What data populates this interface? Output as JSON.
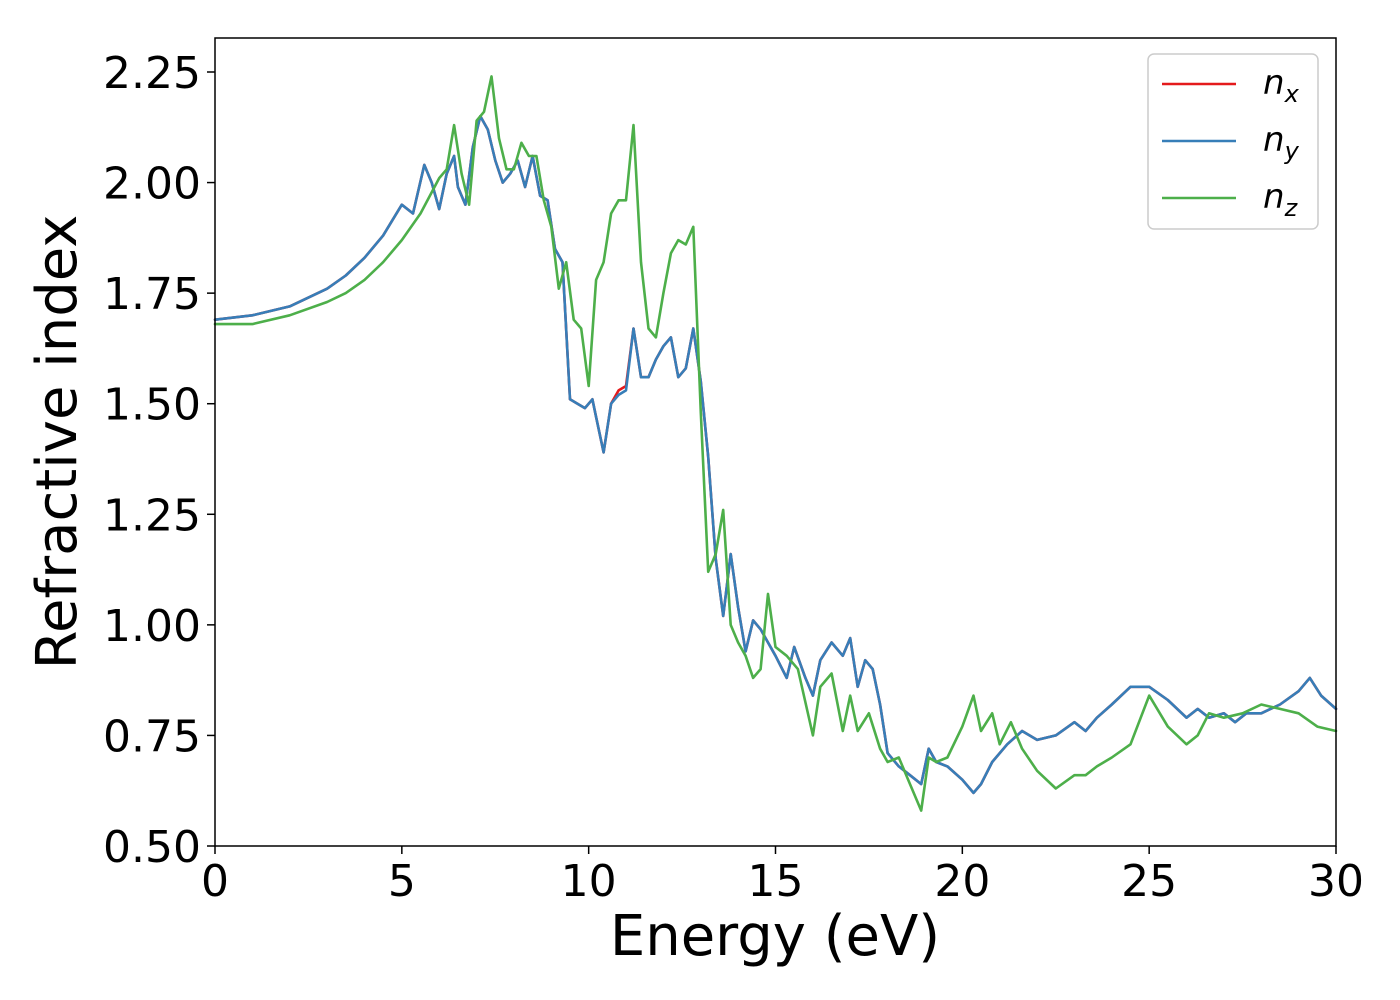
{
  "chart_data": {
    "type": "line",
    "title": "",
    "xlabel": "Energy (eV)",
    "ylabel": "Refractive index",
    "xlim": [
      0,
      30
    ],
    "ylim": [
      0.5,
      2.32
    ],
    "xticks": [
      0,
      5,
      10,
      15,
      20,
      25,
      30
    ],
    "yticks": [
      0.5,
      0.75,
      1.0,
      1.25,
      1.5,
      1.75,
      2.0,
      2.25
    ],
    "xtick_labels": [
      "0",
      "5",
      "10",
      "15",
      "20",
      "25",
      "30"
    ],
    "ytick_labels": [
      "0.50",
      "0.75",
      "1.00",
      "1.25",
      "1.50",
      "1.75",
      "2.00",
      "2.25"
    ],
    "grid": false,
    "legend_position": "top-right",
    "series": [
      {
        "name": "n",
        "subscript": "x",
        "color": "#e41a1c",
        "x": [
          0,
          1,
          2,
          3,
          3.5,
          4,
          4.5,
          5,
          5.3,
          5.6,
          5.8,
          6,
          6.2,
          6.4,
          6.5,
          6.7,
          6.9,
          7.1,
          7.3,
          7.5,
          7.7,
          7.9,
          8.1,
          8.3,
          8.5,
          8.7,
          8.9,
          9.1,
          9.3,
          9.5,
          9.7,
          9.9,
          10.1,
          10.2,
          10.4,
          10.6,
          10.8,
          11,
          11.2,
          11.4,
          11.6,
          11.8,
          12,
          12.2,
          12.4,
          12.6,
          12.8,
          13,
          13.2,
          13.4,
          13.6,
          13.8,
          14,
          14.2,
          14.4,
          14.6,
          14.8,
          15,
          15.3,
          15.5,
          15.8,
          16,
          16.2,
          16.5,
          16.8,
          17,
          17.2,
          17.4,
          17.6,
          17.8,
          18,
          18.3,
          18.6,
          18.9,
          19.1,
          19.3,
          19.6,
          20,
          20.3,
          20.5,
          20.8,
          21.2,
          21.6,
          22,
          22.5,
          23,
          23.3,
          23.6,
          24,
          24.5,
          25,
          25.5,
          26,
          26.3,
          26.6,
          27,
          27.3,
          27.6,
          28,
          28.5,
          29,
          29.3,
          29.6,
          30
        ],
        "values": [
          1.69,
          1.7,
          1.72,
          1.76,
          1.79,
          1.83,
          1.88,
          1.95,
          1.93,
          2.04,
          2.0,
          1.94,
          2.02,
          2.06,
          1.99,
          1.95,
          2.08,
          2.15,
          2.12,
          2.05,
          2.0,
          2.02,
          2.05,
          1.99,
          2.06,
          1.97,
          1.96,
          1.85,
          1.82,
          1.51,
          1.5,
          1.49,
          1.51,
          1.47,
          1.39,
          1.5,
          1.53,
          1.54,
          1.67,
          1.56,
          1.56,
          1.6,
          1.63,
          1.65,
          1.56,
          1.58,
          1.67,
          1.55,
          1.38,
          1.15,
          1.02,
          1.16,
          1.04,
          0.94,
          1.01,
          0.99,
          0.96,
          0.93,
          0.88,
          0.95,
          0.88,
          0.84,
          0.92,
          0.96,
          0.93,
          0.97,
          0.86,
          0.92,
          0.9,
          0.82,
          0.71,
          0.68,
          0.66,
          0.64,
          0.72,
          0.69,
          0.68,
          0.65,
          0.62,
          0.64,
          0.69,
          0.73,
          0.76,
          0.74,
          0.75,
          0.78,
          0.76,
          0.79,
          0.82,
          0.86,
          0.86,
          0.83,
          0.79,
          0.81,
          0.79,
          0.8,
          0.78,
          0.8,
          0.8,
          0.82,
          0.85,
          0.88,
          0.84,
          0.81
        ]
      },
      {
        "name": "n",
        "subscript": "y",
        "color": "#377eb8",
        "x": [
          0,
          1,
          2,
          3,
          3.5,
          4,
          4.5,
          5,
          5.3,
          5.6,
          5.8,
          6,
          6.2,
          6.4,
          6.5,
          6.7,
          6.9,
          7.1,
          7.3,
          7.5,
          7.7,
          7.9,
          8.1,
          8.3,
          8.5,
          8.7,
          8.9,
          9.1,
          9.3,
          9.5,
          9.7,
          9.9,
          10.1,
          10.2,
          10.4,
          10.6,
          10.8,
          11,
          11.2,
          11.4,
          11.6,
          11.8,
          12,
          12.2,
          12.4,
          12.6,
          12.8,
          13,
          13.2,
          13.4,
          13.6,
          13.8,
          14,
          14.2,
          14.4,
          14.6,
          14.8,
          15,
          15.3,
          15.5,
          15.8,
          16,
          16.2,
          16.5,
          16.8,
          17,
          17.2,
          17.4,
          17.6,
          17.8,
          18,
          18.3,
          18.6,
          18.9,
          19.1,
          19.3,
          19.6,
          20,
          20.3,
          20.5,
          20.8,
          21.2,
          21.6,
          22,
          22.5,
          23,
          23.3,
          23.6,
          24,
          24.5,
          25,
          25.5,
          26,
          26.3,
          26.6,
          27,
          27.3,
          27.6,
          28,
          28.5,
          29,
          29.3,
          29.6,
          30
        ],
        "values": [
          1.69,
          1.7,
          1.72,
          1.76,
          1.79,
          1.83,
          1.88,
          1.95,
          1.93,
          2.04,
          2.0,
          1.94,
          2.02,
          2.06,
          1.99,
          1.95,
          2.08,
          2.15,
          2.12,
          2.05,
          2.0,
          2.02,
          2.05,
          1.99,
          2.06,
          1.97,
          1.96,
          1.85,
          1.82,
          1.51,
          1.5,
          1.49,
          1.51,
          1.47,
          1.39,
          1.5,
          1.52,
          1.53,
          1.67,
          1.56,
          1.56,
          1.6,
          1.63,
          1.65,
          1.56,
          1.58,
          1.67,
          1.55,
          1.38,
          1.15,
          1.02,
          1.16,
          1.04,
          0.94,
          1.01,
          0.99,
          0.96,
          0.93,
          0.88,
          0.95,
          0.88,
          0.84,
          0.92,
          0.96,
          0.93,
          0.97,
          0.86,
          0.92,
          0.9,
          0.82,
          0.71,
          0.68,
          0.66,
          0.64,
          0.72,
          0.69,
          0.68,
          0.65,
          0.62,
          0.64,
          0.69,
          0.73,
          0.76,
          0.74,
          0.75,
          0.78,
          0.76,
          0.79,
          0.82,
          0.86,
          0.86,
          0.83,
          0.79,
          0.81,
          0.79,
          0.8,
          0.78,
          0.8,
          0.8,
          0.82,
          0.85,
          0.88,
          0.84,
          0.81
        ]
      },
      {
        "name": "n",
        "subscript": "z",
        "color": "#4daf4a",
        "x": [
          0,
          1,
          2,
          3,
          3.5,
          4,
          4.5,
          5,
          5.5,
          6,
          6.2,
          6.4,
          6.6,
          6.8,
          7,
          7.2,
          7.4,
          7.6,
          7.8,
          8,
          8.2,
          8.4,
          8.6,
          8.8,
          9,
          9.2,
          9.4,
          9.6,
          9.8,
          10,
          10.2,
          10.4,
          10.6,
          10.8,
          11,
          11.2,
          11.4,
          11.6,
          11.8,
          12,
          12.2,
          12.4,
          12.6,
          12.8,
          13,
          13.2,
          13.4,
          13.6,
          13.8,
          14,
          14.2,
          14.4,
          14.6,
          14.8,
          15,
          15.3,
          15.6,
          16,
          16.2,
          16.5,
          16.8,
          17,
          17.2,
          17.5,
          17.8,
          18,
          18.3,
          18.6,
          18.9,
          19.1,
          19.3,
          19.6,
          20,
          20.3,
          20.5,
          20.8,
          21,
          21.3,
          21.6,
          22,
          22.5,
          23,
          23.3,
          23.6,
          24,
          24.5,
          25,
          25.5,
          26,
          26.3,
          26.6,
          27,
          27.5,
          28,
          28.5,
          29,
          29.5,
          30
        ],
        "values": [
          1.68,
          1.68,
          1.7,
          1.73,
          1.75,
          1.78,
          1.82,
          1.87,
          1.93,
          2.01,
          2.03,
          2.13,
          2.02,
          1.95,
          2.14,
          2.16,
          2.24,
          2.1,
          2.03,
          2.03,
          2.09,
          2.06,
          2.06,
          1.96,
          1.9,
          1.76,
          1.82,
          1.69,
          1.67,
          1.54,
          1.78,
          1.82,
          1.93,
          1.96,
          1.96,
          2.13,
          1.82,
          1.67,
          1.65,
          1.75,
          1.84,
          1.87,
          1.86,
          1.9,
          1.48,
          1.12,
          1.16,
          1.26,
          1.0,
          0.96,
          0.93,
          0.88,
          0.9,
          1.07,
          0.95,
          0.93,
          0.9,
          0.75,
          0.86,
          0.89,
          0.76,
          0.84,
          0.76,
          0.8,
          0.72,
          0.69,
          0.7,
          0.64,
          0.58,
          0.7,
          0.69,
          0.7,
          0.77,
          0.84,
          0.76,
          0.8,
          0.73,
          0.78,
          0.72,
          0.67,
          0.63,
          0.66,
          0.66,
          0.68,
          0.7,
          0.73,
          0.84,
          0.77,
          0.73,
          0.75,
          0.8,
          0.79,
          0.8,
          0.82,
          0.81,
          0.8,
          0.77,
          0.76
        ]
      }
    ]
  }
}
